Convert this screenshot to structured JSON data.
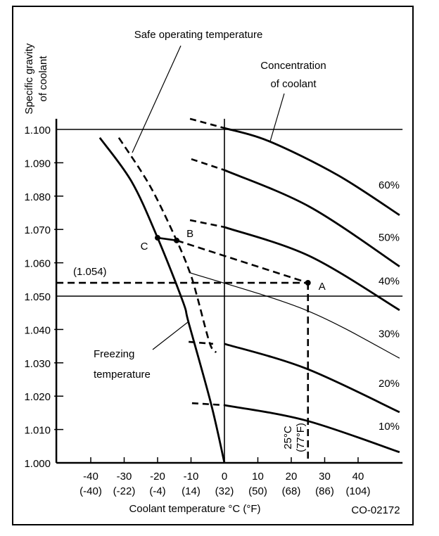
{
  "chart_data": {
    "type": "line",
    "figure_id": "CO-02172",
    "xlabel": "Coolant  temperature °C (°F)",
    "ylabel": [
      "Specific  gravity",
      "of  coolant"
    ],
    "xlim": [
      -50.3,
      53.3
    ],
    "ylim": [
      1.0,
      1.1032
    ],
    "x_ticks": [
      {
        "value": -40,
        "label": "-40",
        "sub": "(-40)"
      },
      {
        "value": -30,
        "label": "-30",
        "sub": "(-22)"
      },
      {
        "value": -20,
        "label": "-20",
        "sub": "(-4)"
      },
      {
        "value": -10,
        "label": "-10",
        "sub": "(14)"
      },
      {
        "value": 0,
        "label": "0",
        "sub": "(32)"
      },
      {
        "value": 10,
        "label": "10",
        "sub": "(50)"
      },
      {
        "value": 20,
        "label": "20",
        "sub": "(68)"
      },
      {
        "value": 30,
        "label": "30",
        "sub": "(86)"
      },
      {
        "value": 40,
        "label": "40",
        "sub": "(104)"
      }
    ],
    "y_ticks": [
      {
        "value": 1.0,
        "label": "1.000"
      },
      {
        "value": 1.01,
        "label": "1.010"
      },
      {
        "value": 1.02,
        "label": "1.020"
      },
      {
        "value": 1.03,
        "label": "1.030"
      },
      {
        "value": 1.04,
        "label": "1.040"
      },
      {
        "value": 1.05,
        "label": "1.050"
      },
      {
        "value": 1.06,
        "label": "1.060"
      },
      {
        "value": 1.07,
        "label": "1.070"
      },
      {
        "value": 1.08,
        "label": "1.080"
      },
      {
        "value": 1.09,
        "label": "1.090"
      },
      {
        "value": 1.1,
        "label": "1.100"
      }
    ],
    "reference_lines": {
      "horizontal": [
        1.1,
        1.05
      ],
      "vertical": [
        0
      ]
    },
    "concentration_series": [
      {
        "name": "60%",
        "label_y": 1.0835,
        "points": [
          [
            0,
            1.1004
          ],
          [
            13.5,
            1.0964
          ],
          [
            33.9,
            1.0863
          ],
          [
            52.4,
            1.0743
          ]
        ],
        "dashed_extension": [
          [
            -10.3,
            1.1032
          ],
          [
            0,
            1.1004
          ]
        ],
        "weight": "bold"
      },
      {
        "name": "50%",
        "label_y": 1.0678,
        "points": [
          [
            0,
            1.0878
          ],
          [
            25.5,
            1.0768
          ],
          [
            52.4,
            1.0589
          ]
        ],
        "dashed_extension": [
          [
            -9.9,
            1.0911
          ],
          [
            0,
            1.0878
          ]
        ],
        "weight": "bold"
      },
      {
        "name": "40%",
        "label_y": 1.0547,
        "points": [
          [
            0,
            1.0707
          ],
          [
            25.5,
            1.062
          ],
          [
            52.4,
            1.0458
          ]
        ],
        "dashed_extension": [
          [
            -10.3,
            1.0728
          ],
          [
            0,
            1.0707
          ]
        ],
        "weight": "bold"
      },
      {
        "name": "30%",
        "label_y": 1.0389,
        "points": [
          [
            -10.3,
            1.057
          ],
          [
            24.4,
            1.0458
          ],
          [
            52.4,
            1.0314
          ]
        ],
        "dashed_extension": null,
        "weight": "thin"
      },
      {
        "name": "20%",
        "label_y": 1.0241,
        "points": [
          [
            0,
            1.0357
          ],
          [
            24.4,
            1.0283
          ],
          [
            52.4,
            1.0152
          ]
        ],
        "dashed_extension": [
          [
            -10.7,
            1.0363
          ],
          [
            -3.4,
            1.0357
          ]
        ],
        "weight": "bold"
      },
      {
        "name": "10%",
        "label_y": 1.0112,
        "points": [
          [
            0,
            1.0173
          ],
          [
            24.4,
            1.0127
          ],
          [
            52.4,
            1.0032
          ]
        ],
        "dashed_extension": [
          [
            -9.7,
            1.0179
          ],
          [
            0,
            1.0173
          ]
        ],
        "weight": "bold"
      }
    ],
    "freezing_curve": {
      "name": "Freezing temperature",
      "points": [
        [
          -37.3,
          1.0975
        ],
        [
          -27.8,
          1.0844
        ],
        [
          -20.0,
          1.0675
        ],
        [
          -12.4,
          1.0483
        ],
        [
          -10.7,
          1.042
        ],
        [
          -4.0,
          1.0177
        ],
        [
          0,
          1.0
        ]
      ]
    },
    "safe_curve": {
      "name": "Safe operating temperature",
      "points": [
        [
          -31.6,
          1.0975
        ],
        [
          -22.3,
          1.0831
        ],
        [
          -14.3,
          1.0667
        ],
        [
          -10.3,
          1.057
        ],
        [
          -8.2,
          1.05
        ],
        [
          -4.4,
          1.0359
        ],
        [
          -2.5,
          1.0331
        ]
      ]
    },
    "points": [
      {
        "name": "A",
        "x": 25,
        "y": 1.054
      },
      {
        "name": "B",
        "x": -14.3,
        "y": 1.0667
      },
      {
        "name": "C",
        "x": -20.0,
        "y": 1.0675
      }
    ],
    "annotations": {
      "safe_label": "Safe  operating  temperature",
      "concentration_label": [
        "Concentration",
        "of  coolant"
      ],
      "freezing_label": [
        "Freezing",
        "temperature"
      ],
      "sg_readout": "(1.054)",
      "temp_readout": [
        "25°C",
        "(77°F)"
      ]
    }
  }
}
